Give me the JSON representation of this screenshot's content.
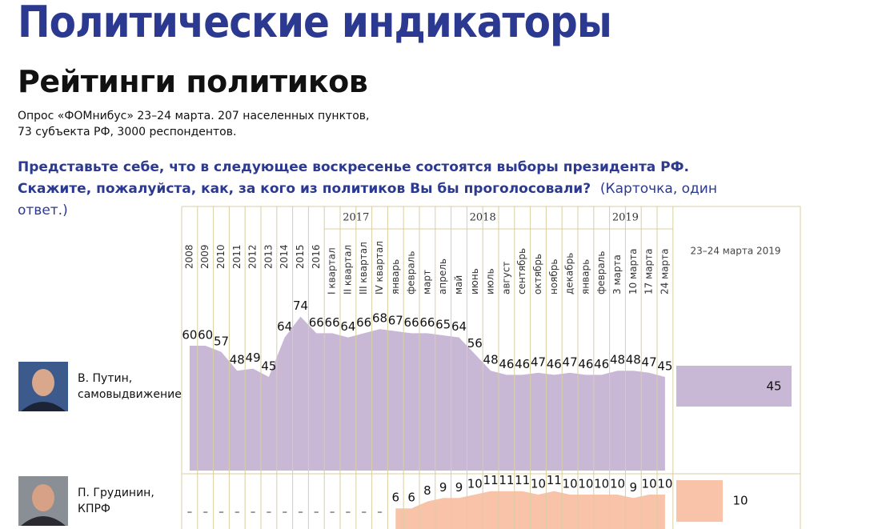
{
  "header": {
    "title": "Политические индикаторы",
    "subtitle": "Рейтинги политиков",
    "survey": [
      "Опрос «ФОМнибус» 23–24 марта. 207 населенных пунктов,",
      "73 субъекта РФ, 3000 респондентов."
    ],
    "question": "Представьте себе, что в следующее воскресенье состоятся выборы президента РФ. Скажите, пожалуйста, как, за кого из политиков Вы бы проголосовали?",
    "question_note": "(Карточка, один ответ.)"
  },
  "chart_data": {
    "type": "area",
    "periods": [
      {
        "group": null,
        "categories": [
          "2008",
          "2009",
          "2010",
          "2011",
          "2012",
          "2013",
          "2014",
          "2015",
          "2016"
        ]
      },
      {
        "group": "2017",
        "categories": [
          "I квартал",
          "II квартал",
          "III квартал",
          "IV квартал"
        ]
      },
      {
        "group": "2018",
        "categories": [
          "январь",
          "февраль",
          "март",
          "апрель",
          "май",
          "июнь",
          "июль",
          "август",
          "сентябрь",
          "октябрь",
          "ноябрь",
          "декабрь"
        ]
      },
      {
        "group": "2019",
        "categories": [
          "январь",
          "февраль",
          "3 марта",
          "10 марта",
          "17 марта",
          "24 марта"
        ]
      }
    ],
    "latest_label": "23–24 марта 2019",
    "missing_label": "–",
    "series": [
      {
        "name": [
          "В. Путин,",
          "самовыдвижение"
        ],
        "color": "#c9b7d6",
        "bar_color": "#c9b7d6",
        "values": [
          60,
          60,
          57,
          48,
          49,
          45,
          64,
          74,
          66,
          66,
          64,
          66,
          68,
          67,
          66,
          66,
          65,
          64,
          56,
          48,
          46,
          46,
          47,
          46,
          47,
          46,
          46,
          48,
          48,
          47,
          45
        ],
        "latest": 45
      },
      {
        "name": [
          "П. Грудинин,",
          "КПРФ"
        ],
        "color": "#f8c3a8",
        "bar_color": "#f8c3a8",
        "values": [
          null,
          null,
          null,
          null,
          null,
          null,
          null,
          null,
          null,
          null,
          null,
          null,
          null,
          6,
          6,
          8,
          9,
          9,
          10,
          11,
          11,
          11,
          10,
          11,
          10,
          10,
          10,
          10,
          9,
          10,
          10
        ],
        "latest": 10
      }
    ]
  }
}
